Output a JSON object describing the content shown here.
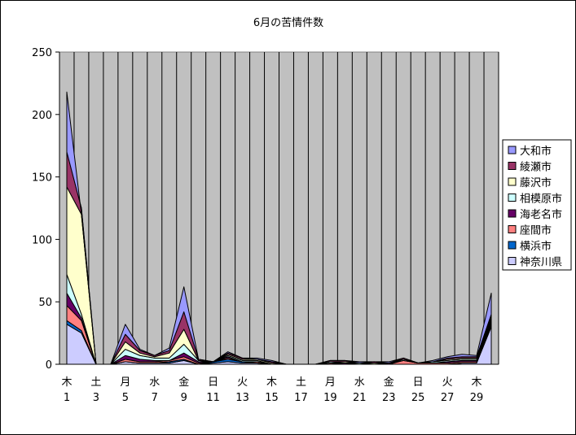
{
  "chart_data": {
    "type": "area",
    "stacked": true,
    "title": "6月の苦情件数",
    "xlabel": "",
    "ylabel": "",
    "ylim": [
      0,
      250
    ],
    "yticks": [
      0,
      50,
      100,
      150,
      200,
      250
    ],
    "grid": true,
    "legend_position": "right",
    "x": [
      1,
      2,
      3,
      4,
      5,
      6,
      7,
      8,
      9,
      10,
      11,
      12,
      13,
      14,
      15,
      16,
      17,
      18,
      19,
      20,
      21,
      22,
      23,
      24,
      25,
      26,
      27,
      28,
      29,
      30
    ],
    "x_tick_weekdays": [
      "木",
      "",
      "土",
      "",
      "月",
      "",
      "水",
      "",
      "金",
      "",
      "日",
      "",
      "火",
      "",
      "木",
      "",
      "土",
      "",
      "月",
      "",
      "水",
      "",
      "金",
      "",
      "日",
      "",
      "火",
      "",
      "木",
      ""
    ],
    "x_tick_labels": [
      "1",
      "",
      "3",
      "",
      "5",
      "",
      "7",
      "",
      "9",
      "",
      "11",
      "",
      "13",
      "",
      "15",
      "",
      "17",
      "",
      "19",
      "",
      "21",
      "",
      "23",
      "",
      "25",
      "",
      "27",
      "",
      "29",
      ""
    ],
    "series": [
      {
        "name": "神奈川県",
        "color": "#ccccff",
        "values": [
          32,
          25,
          0,
          0,
          2,
          1,
          1,
          1,
          3,
          0,
          1,
          2,
          1,
          1,
          0,
          0,
          0,
          0,
          0,
          0,
          0,
          0,
          0,
          0,
          0,
          0,
          0,
          1,
          1,
          30
        ]
      },
      {
        "name": "横浜市",
        "color": "#0066cc",
        "values": [
          3,
          2,
          0,
          0,
          0,
          0,
          0,
          1,
          1,
          0,
          1,
          2,
          1,
          0,
          0,
          0,
          0,
          0,
          0,
          0,
          0,
          0,
          0,
          0,
          0,
          0,
          0,
          0,
          0,
          2
        ]
      },
      {
        "name": "座間市",
        "color": "#ff8080",
        "values": [
          12,
          8,
          0,
          0,
          2,
          1,
          1,
          1,
          2,
          1,
          0,
          1,
          0,
          1,
          0,
          0,
          0,
          0,
          1,
          0,
          0,
          0,
          0,
          3,
          1,
          1,
          1,
          1,
          1,
          1
        ]
      },
      {
        "name": "海老名市",
        "color": "#660066",
        "values": [
          10,
          2,
          0,
          0,
          3,
          2,
          1,
          0,
          3,
          1,
          0,
          1,
          0,
          0,
          0,
          0,
          0,
          0,
          0,
          1,
          0,
          0,
          1,
          0,
          0,
          0,
          1,
          1,
          1,
          2
        ]
      },
      {
        "name": "相模原市",
        "color": "#ccffff",
        "values": [
          15,
          3,
          0,
          0,
          5,
          3,
          2,
          2,
          7,
          1,
          0,
          1,
          1,
          1,
          0,
          0,
          0,
          0,
          1,
          0,
          1,
          0,
          0,
          1,
          0,
          1,
          1,
          1,
          1,
          2
        ]
      },
      {
        "name": "藤沢市",
        "color": "#ffffcc",
        "values": [
          70,
          80,
          0,
          0,
          6,
          2,
          1,
          4,
          12,
          0,
          0,
          1,
          1,
          1,
          1,
          0,
          0,
          0,
          0,
          1,
          0,
          1,
          0,
          0,
          0,
          0,
          1,
          1,
          1,
          1
        ]
      },
      {
        "name": "綾瀬市",
        "color": "#993366",
        "values": [
          28,
          5,
          0,
          0,
          6,
          2,
          1,
          2,
          14,
          1,
          0,
          1,
          1,
          0,
          1,
          0,
          0,
          0,
          1,
          1,
          0,
          1,
          0,
          1,
          0,
          0,
          1,
          1,
          1,
          2
        ]
      },
      {
        "name": "大和市",
        "color": "#9999ff",
        "values": [
          48,
          -5,
          0,
          0,
          8,
          1,
          0,
          2,
          20,
          0,
          0,
          1,
          0,
          1,
          1,
          0,
          0,
          0,
          0,
          0,
          1,
          0,
          1,
          0,
          0,
          1,
          1,
          2,
          1,
          17
        ]
      }
    ]
  }
}
